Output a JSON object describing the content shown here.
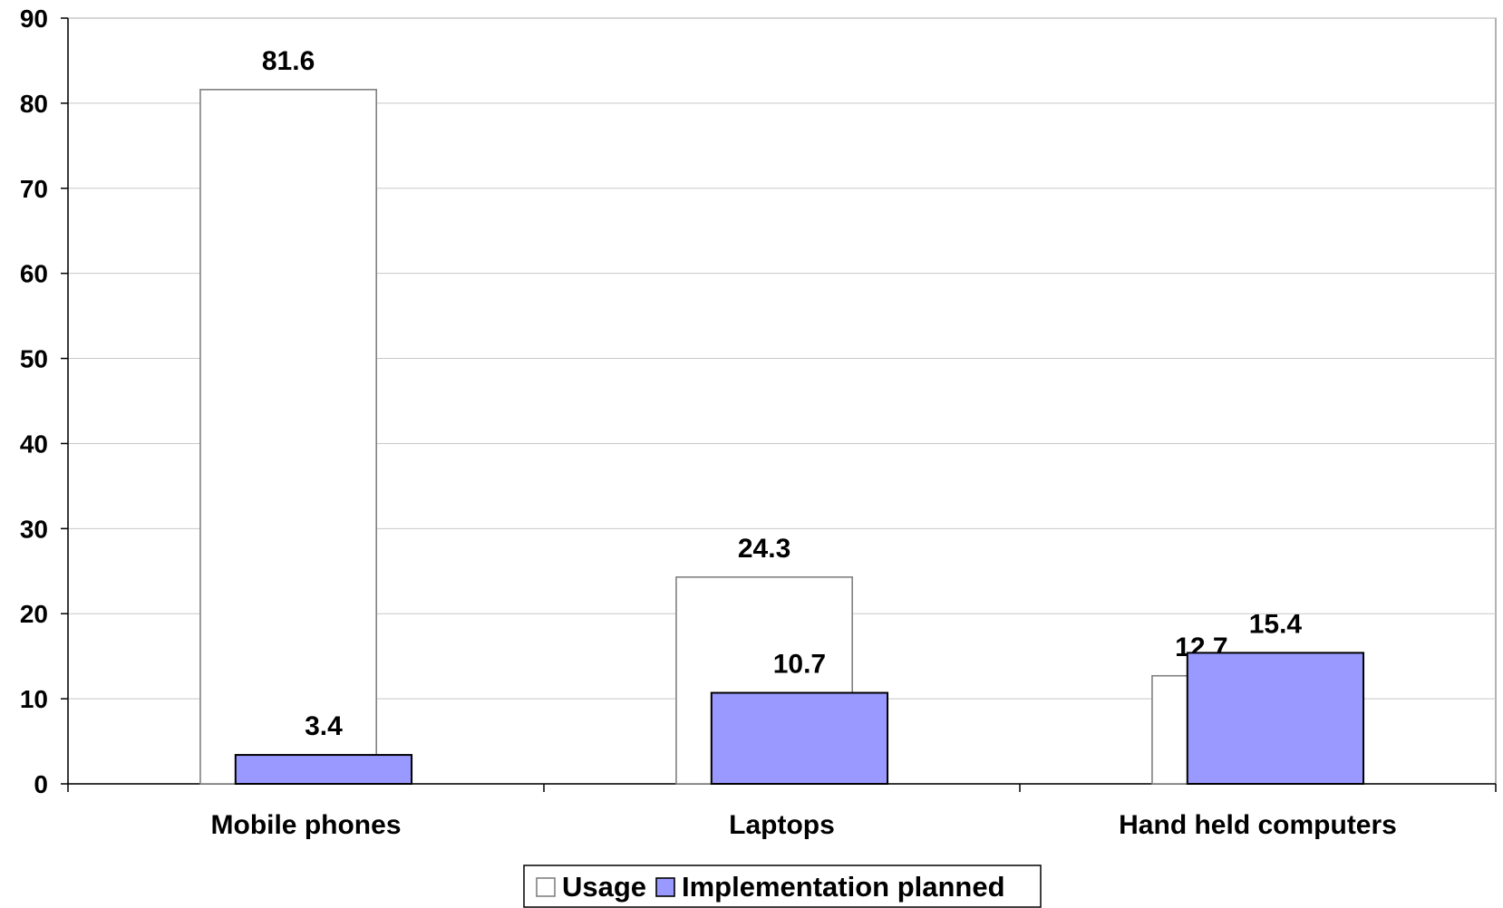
{
  "chart_data": {
    "type": "bar",
    "categories": [
      "Mobile phones",
      "Laptops",
      "Hand held computers"
    ],
    "series": [
      {
        "name": "Usage",
        "values": [
          81.6,
          24.3,
          12.7
        ],
        "color": "#ffffff",
        "stroke": "#808080"
      },
      {
        "name": "Implementation planned",
        "values": [
          3.4,
          10.7,
          15.4
        ],
        "color": "#9999ff",
        "stroke": "#000000"
      }
    ],
    "data_labels": [
      [
        "81.6",
        "24.3",
        "12.7"
      ],
      [
        "3.4",
        "10.7",
        "15.4"
      ]
    ],
    "ylim": [
      0,
      90
    ],
    "yticks": [
      0,
      10,
      20,
      30,
      40,
      50,
      60,
      70,
      80,
      90
    ],
    "ytick_labels": [
      "0",
      "10",
      "20",
      "30",
      "40",
      "50",
      "60",
      "70",
      "80",
      "90"
    ],
    "grid": true,
    "legend_position": "bottom-center",
    "title": "",
    "xlabel": "",
    "ylabel": ""
  }
}
